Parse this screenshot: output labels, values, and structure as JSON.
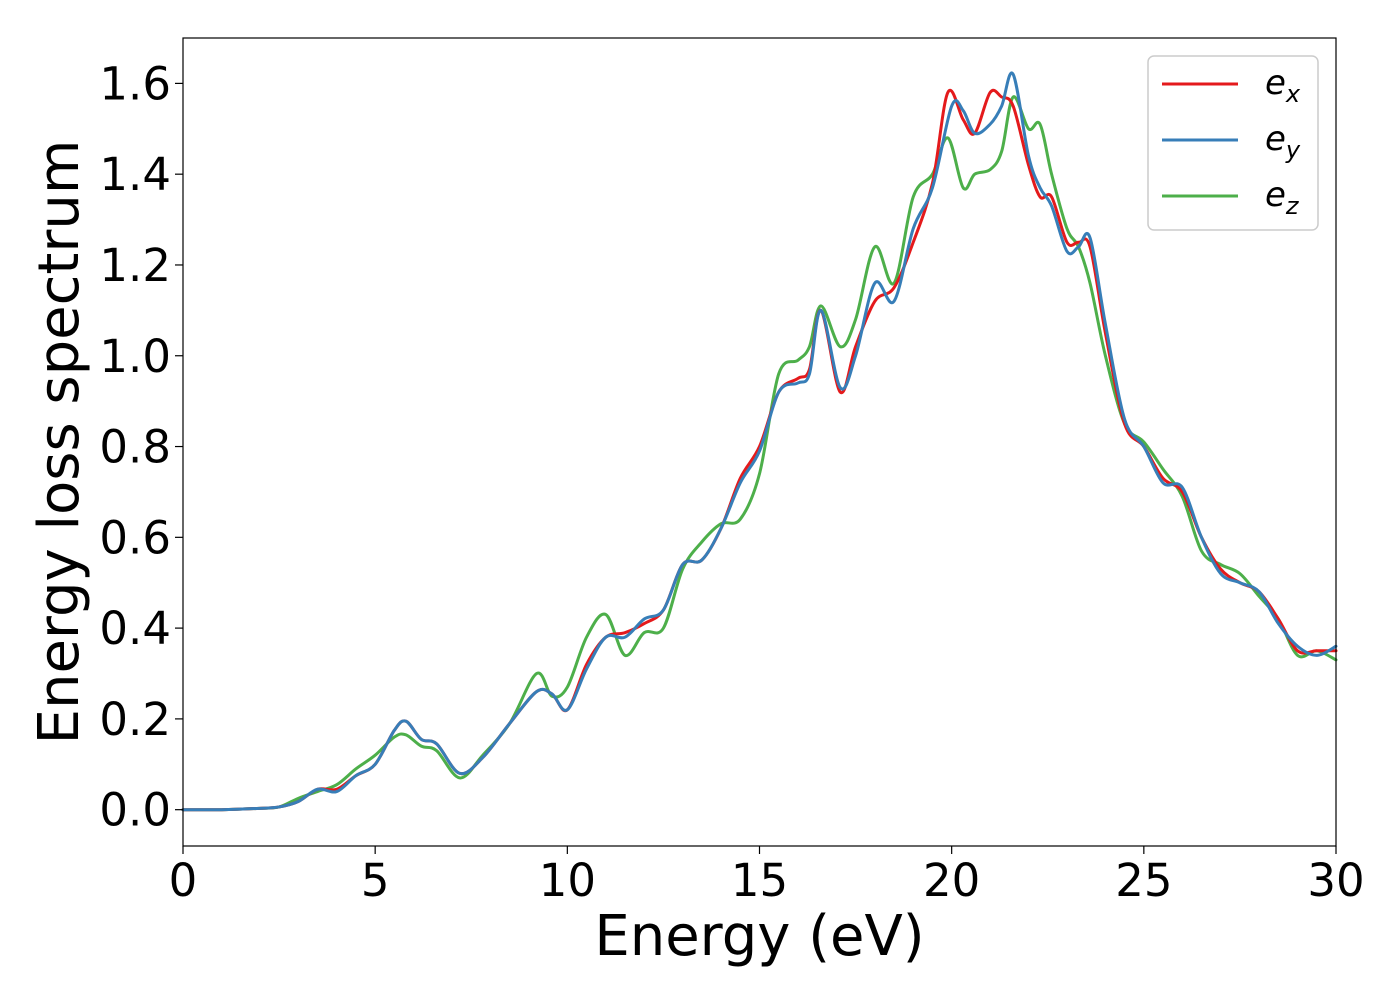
{
  "chart_data": {
    "type": "line",
    "xlabel": "Energy (eV)",
    "ylabel": "Energy loss spectrum",
    "xlim": [
      0,
      30
    ],
    "ylim": [
      -0.08,
      1.7
    ],
    "xticks": [
      0,
      5,
      10,
      15,
      20,
      25,
      30
    ],
    "xtick_labels": [
      "0",
      "5",
      "10",
      "15",
      "20",
      "25",
      "30"
    ],
    "yticks": [
      0.0,
      0.2,
      0.4,
      0.6,
      0.8,
      1.0,
      1.2,
      1.4,
      1.6
    ],
    "ytick_labels": [
      "0.0",
      "0.2",
      "0.4",
      "0.6",
      "0.8",
      "1.0",
      "1.2",
      "1.4",
      "1.6"
    ],
    "grid": false,
    "legend_position": "top-right",
    "series": [
      {
        "name": "e_x",
        "legend_base": "e",
        "legend_sub": "x",
        "color": "#e41a1c",
        "points": [
          [
            0,
            0.0
          ],
          [
            1,
            0.0
          ],
          [
            2,
            0.003
          ],
          [
            2.5,
            0.006
          ],
          [
            3,
            0.018
          ],
          [
            3.5,
            0.045
          ],
          [
            4,
            0.045
          ],
          [
            4.5,
            0.075
          ],
          [
            5,
            0.1
          ],
          [
            5.5,
            0.175
          ],
          [
            5.8,
            0.195
          ],
          [
            6.2,
            0.155
          ],
          [
            6.6,
            0.145
          ],
          [
            7.2,
            0.08
          ],
          [
            7.8,
            0.115
          ],
          [
            8.5,
            0.19
          ],
          [
            9.2,
            0.26
          ],
          [
            9.6,
            0.255
          ],
          [
            10,
            0.22
          ],
          [
            10.5,
            0.32
          ],
          [
            11,
            0.38
          ],
          [
            11.5,
            0.39
          ],
          [
            12,
            0.41
          ],
          [
            12.5,
            0.44
          ],
          [
            13,
            0.54
          ],
          [
            13.5,
            0.55
          ],
          [
            14,
            0.62
          ],
          [
            14.5,
            0.73
          ],
          [
            15,
            0.8
          ],
          [
            15.5,
            0.92
          ],
          [
            16,
            0.95
          ],
          [
            16.3,
            0.97
          ],
          [
            16.6,
            1.1
          ],
          [
            17.1,
            0.92
          ],
          [
            17.5,
            1.02
          ],
          [
            18,
            1.12
          ],
          [
            18.5,
            1.15
          ],
          [
            19,
            1.25
          ],
          [
            19.5,
            1.38
          ],
          [
            19.9,
            1.58
          ],
          [
            20.3,
            1.52
          ],
          [
            20.6,
            1.49
          ],
          [
            21,
            1.58
          ],
          [
            21.3,
            1.57
          ],
          [
            21.6,
            1.55
          ],
          [
            22,
            1.42
          ],
          [
            22.3,
            1.35
          ],
          [
            22.6,
            1.35
          ],
          [
            23,
            1.25
          ],
          [
            23.3,
            1.25
          ],
          [
            23.6,
            1.24
          ],
          [
            24,
            1.05
          ],
          [
            24.5,
            0.85
          ],
          [
            25,
            0.8
          ],
          [
            25.5,
            0.73
          ],
          [
            26,
            0.7
          ],
          [
            26.5,
            0.6
          ],
          [
            27,
            0.53
          ],
          [
            27.5,
            0.5
          ],
          [
            28,
            0.48
          ],
          [
            28.5,
            0.42
          ],
          [
            29,
            0.35
          ],
          [
            29.5,
            0.35
          ],
          [
            30,
            0.35
          ]
        ]
      },
      {
        "name": "e_y",
        "legend_base": "e",
        "legend_sub": "y",
        "color": "#377eb8",
        "points": [
          [
            0,
            0.0
          ],
          [
            1,
            0.0
          ],
          [
            2,
            0.003
          ],
          [
            2.5,
            0.006
          ],
          [
            3,
            0.018
          ],
          [
            3.5,
            0.045
          ],
          [
            4,
            0.04
          ],
          [
            4.5,
            0.075
          ],
          [
            5,
            0.1
          ],
          [
            5.5,
            0.175
          ],
          [
            5.8,
            0.195
          ],
          [
            6.2,
            0.155
          ],
          [
            6.6,
            0.145
          ],
          [
            7.2,
            0.08
          ],
          [
            7.8,
            0.115
          ],
          [
            8.5,
            0.19
          ],
          [
            9.2,
            0.26
          ],
          [
            9.6,
            0.255
          ],
          [
            10,
            0.22
          ],
          [
            10.5,
            0.31
          ],
          [
            11,
            0.38
          ],
          [
            11.5,
            0.38
          ],
          [
            12,
            0.42
          ],
          [
            12.5,
            0.44
          ],
          [
            13,
            0.54
          ],
          [
            13.5,
            0.55
          ],
          [
            14,
            0.62
          ],
          [
            14.5,
            0.72
          ],
          [
            15,
            0.79
          ],
          [
            15.5,
            0.92
          ],
          [
            16,
            0.94
          ],
          [
            16.3,
            0.96
          ],
          [
            16.6,
            1.1
          ],
          [
            17.1,
            0.93
          ],
          [
            17.5,
            1.0
          ],
          [
            18,
            1.16
          ],
          [
            18.5,
            1.12
          ],
          [
            19,
            1.28
          ],
          [
            19.5,
            1.37
          ],
          [
            20,
            1.55
          ],
          [
            20.3,
            1.54
          ],
          [
            20.6,
            1.49
          ],
          [
            21,
            1.51
          ],
          [
            21.3,
            1.55
          ],
          [
            21.6,
            1.62
          ],
          [
            22,
            1.44
          ],
          [
            22.3,
            1.37
          ],
          [
            22.6,
            1.33
          ],
          [
            23,
            1.23
          ],
          [
            23.3,
            1.24
          ],
          [
            23.6,
            1.26
          ],
          [
            24,
            1.07
          ],
          [
            24.5,
            0.86
          ],
          [
            25,
            0.8
          ],
          [
            25.5,
            0.72
          ],
          [
            26,
            0.71
          ],
          [
            26.5,
            0.6
          ],
          [
            27,
            0.52
          ],
          [
            27.5,
            0.5
          ],
          [
            28,
            0.48
          ],
          [
            28.5,
            0.41
          ],
          [
            29,
            0.36
          ],
          [
            29.5,
            0.34
          ],
          [
            30,
            0.36
          ]
        ]
      },
      {
        "name": "e_z",
        "legend_base": "e",
        "legend_sub": "z",
        "color": "#4daf4a",
        "points": [
          [
            0,
            0.0
          ],
          [
            1,
            0.0
          ],
          [
            2,
            0.003
          ],
          [
            2.5,
            0.006
          ],
          [
            3,
            0.025
          ],
          [
            3.5,
            0.04
          ],
          [
            4,
            0.055
          ],
          [
            4.5,
            0.09
          ],
          [
            5,
            0.12
          ],
          [
            5.5,
            0.16
          ],
          [
            5.8,
            0.165
          ],
          [
            6.2,
            0.14
          ],
          [
            6.6,
            0.13
          ],
          [
            7.2,
            0.07
          ],
          [
            7.8,
            0.12
          ],
          [
            8.5,
            0.19
          ],
          [
            9.2,
            0.3
          ],
          [
            9.6,
            0.25
          ],
          [
            10,
            0.27
          ],
          [
            10.5,
            0.38
          ],
          [
            11,
            0.43
          ],
          [
            11.5,
            0.34
          ],
          [
            12,
            0.39
          ],
          [
            12.5,
            0.4
          ],
          [
            13,
            0.53
          ],
          [
            13.5,
            0.59
          ],
          [
            14,
            0.63
          ],
          [
            14.5,
            0.64
          ],
          [
            15,
            0.74
          ],
          [
            15.5,
            0.96
          ],
          [
            16,
            0.99
          ],
          [
            16.3,
            1.02
          ],
          [
            16.6,
            1.11
          ],
          [
            17.1,
            1.02
          ],
          [
            17.5,
            1.08
          ],
          [
            18,
            1.24
          ],
          [
            18.5,
            1.16
          ],
          [
            19,
            1.35
          ],
          [
            19.5,
            1.4
          ],
          [
            19.9,
            1.48
          ],
          [
            20.3,
            1.37
          ],
          [
            20.6,
            1.4
          ],
          [
            21,
            1.41
          ],
          [
            21.3,
            1.45
          ],
          [
            21.6,
            1.57
          ],
          [
            22,
            1.5
          ],
          [
            22.3,
            1.51
          ],
          [
            22.6,
            1.4
          ],
          [
            23,
            1.28
          ],
          [
            23.3,
            1.24
          ],
          [
            23.6,
            1.16
          ],
          [
            24,
            1.0
          ],
          [
            24.5,
            0.85
          ],
          [
            25,
            0.81
          ],
          [
            25.5,
            0.75
          ],
          [
            26,
            0.69
          ],
          [
            26.5,
            0.57
          ],
          [
            27,
            0.54
          ],
          [
            27.5,
            0.52
          ],
          [
            28,
            0.47
          ],
          [
            28.5,
            0.42
          ],
          [
            29,
            0.34
          ],
          [
            29.5,
            0.35
          ],
          [
            30,
            0.33
          ]
        ]
      }
    ]
  }
}
